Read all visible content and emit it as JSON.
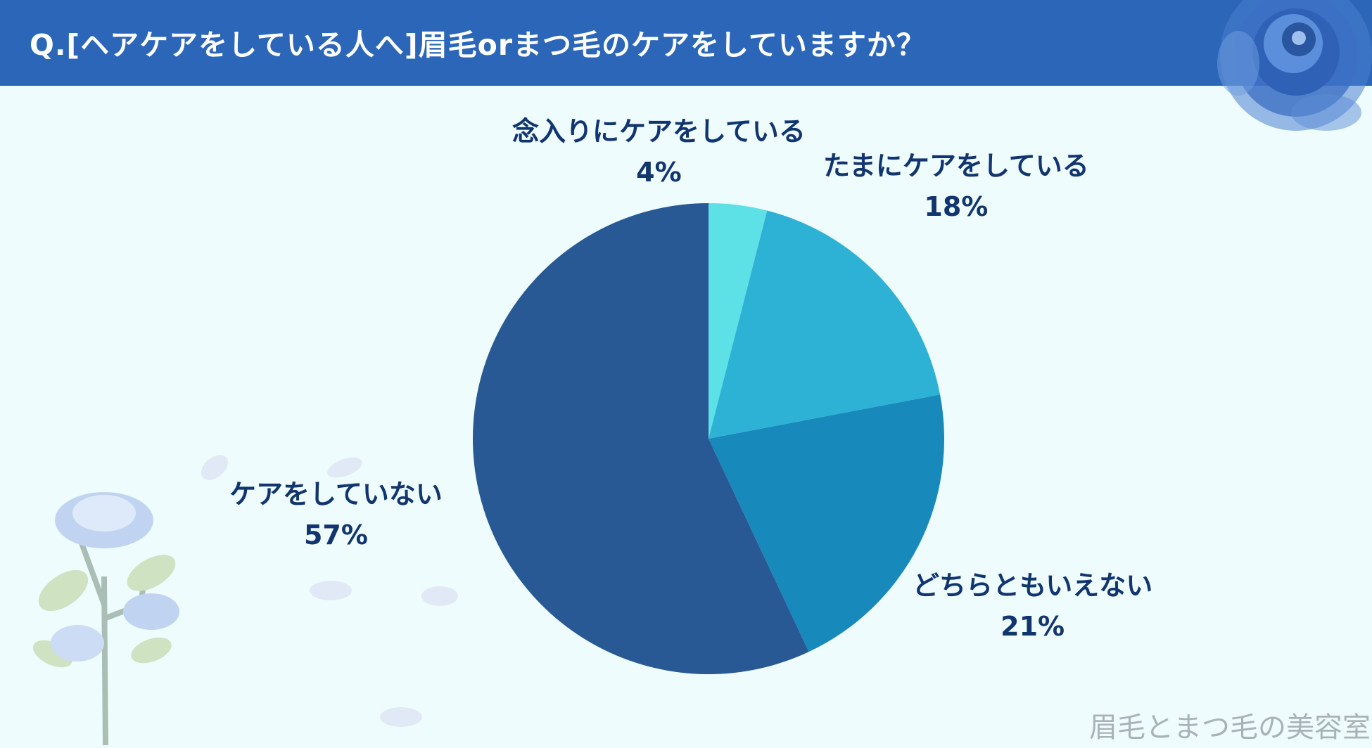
{
  "header": {
    "title": "Q.[ヘアケアをしている人へ]眉毛orまつ毛のケアをしていますか？"
  },
  "chart_data": {
    "type": "pie",
    "title": "Q.[ヘアケアをしている人へ]眉毛orまつ毛のケアをしていますか？",
    "start_angle": "12 o'clock",
    "direction": "clockwise",
    "slices": [
      {
        "label": "念入りにケアをしている",
        "value": 4,
        "value_label": "4%",
        "color": "#5de0e6"
      },
      {
        "label": "たまにケアをしている",
        "value": 18,
        "value_label": "18%",
        "color": "#2db2d5"
      },
      {
        "label": "どちらともいえない",
        "value": 21,
        "value_label": "21%",
        "color": "#1889bb"
      },
      {
        "label": "ケアをしていない",
        "value": 57,
        "value_label": "57%",
        "color": "#285995"
      }
    ]
  },
  "watermark": "眉毛とまつ毛の美容室",
  "decorations": {
    "top_right": "blue-rose",
    "bottom_left": "pale-blue-rose-branch"
  }
}
